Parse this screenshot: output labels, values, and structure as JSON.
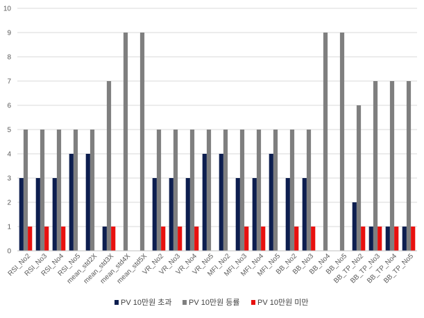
{
  "chart_data": {
    "type": "bar",
    "title": "",
    "xlabel": "",
    "ylabel": "",
    "ylim": [
      0,
      10
    ],
    "yticks": [
      0,
      1,
      2,
      3,
      4,
      5,
      6,
      7,
      8,
      9,
      10
    ],
    "grid": true,
    "legend_position": "bottom",
    "categories": [
      "RSI_No2",
      "RSI_No3",
      "RSI_No4",
      "RSI_No5",
      "mean_std2X",
      "mean_std3X",
      "mean_std4X",
      "mean_std5X",
      "VR_No2",
      "VR_No3",
      "VR_No4",
      "VR_No5",
      "MFI_No2",
      "MFI_No3",
      "MFI_No4",
      "MFI_No5",
      "BB_No2",
      "BB_No3",
      "BB_No4",
      "BB_No5",
      "BB_TP_No2",
      "BB_TP_No3",
      "BB_TP_No4",
      "BB_TP_No5"
    ],
    "series": [
      {
        "name": "PV 10만원 초과",
        "color": "#0d1e4f",
        "values": [
          3,
          3,
          3,
          4,
          4,
          1,
          0,
          0,
          3,
          3,
          3,
          4,
          4,
          3,
          3,
          4,
          3,
          3,
          0,
          0,
          2,
          1,
          1,
          1
        ]
      },
      {
        "name": "PV 10만원 등률",
        "color": "#7f7f7f",
        "values": [
          5,
          5,
          5,
          5,
          5,
          7,
          9,
          9,
          5,
          5,
          5,
          5,
          5,
          5,
          5,
          5,
          5,
          5,
          9,
          9,
          6,
          7,
          7,
          7
        ]
      },
      {
        "name": "PV 10만원 미만",
        "color": "#e8110f",
        "values": [
          1,
          1,
          1,
          0,
          0,
          1,
          0,
          0,
          1,
          1,
          1,
          0,
          0,
          1,
          1,
          0,
          1,
          1,
          0,
          0,
          1,
          1,
          1,
          1
        ]
      }
    ]
  }
}
